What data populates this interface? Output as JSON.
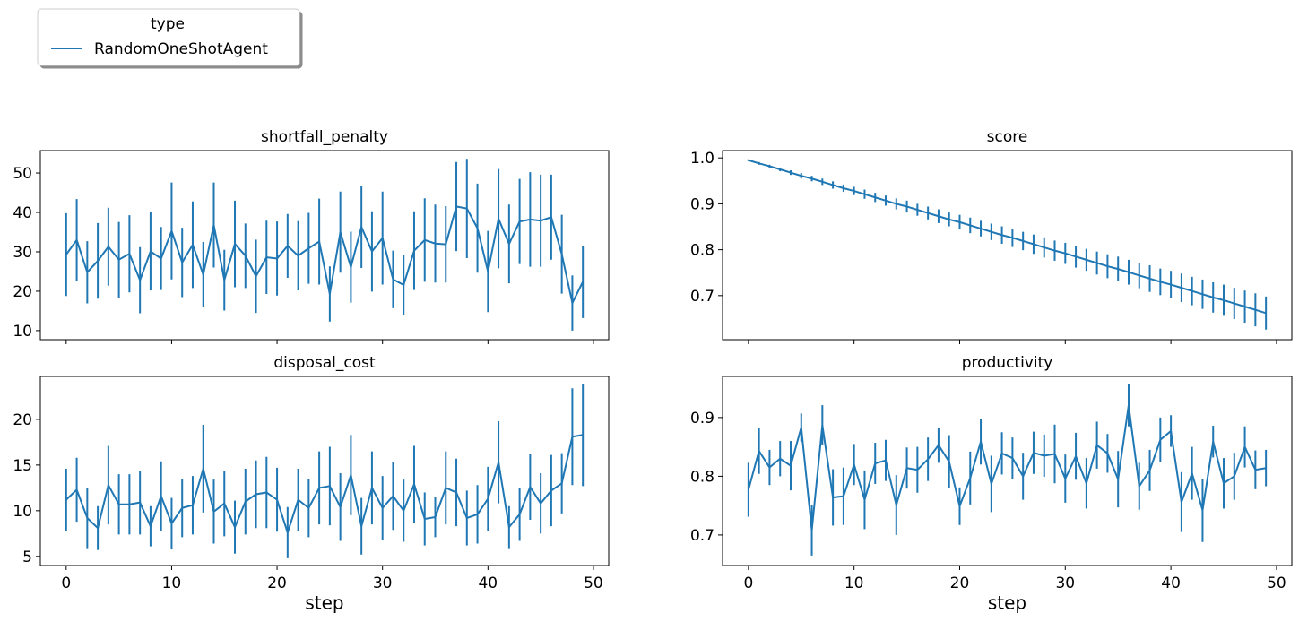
{
  "chart_data": [
    {
      "type": "line",
      "title": "shortfall_penalty",
      "legend_title": "type",
      "show_xticklabels": false,
      "x": [
        0,
        1,
        2,
        3,
        4,
        5,
        6,
        7,
        8,
        9,
        10,
        11,
        12,
        13,
        14,
        15,
        16,
        17,
        18,
        19,
        20,
        21,
        22,
        23,
        24,
        25,
        26,
        27,
        28,
        29,
        30,
        31,
        32,
        33,
        34,
        35,
        36,
        37,
        38,
        39,
        40,
        41,
        42,
        43,
        44,
        45,
        46,
        47,
        48,
        49
      ],
      "series": [
        {
          "name": "RandomOneShotAgent",
          "color": "#1f77b4",
          "values": [
            29.3,
            33,
            24.8,
            27.7,
            31.3,
            28,
            29.5,
            22.8,
            30.1,
            28.3,
            35.3,
            27.3,
            31.8,
            24.2,
            36.8,
            22.8,
            32,
            29,
            23.8,
            28.6,
            28.3,
            31.5,
            29,
            30.9,
            32.6,
            19.3,
            35,
            26.1,
            36.3,
            30.1,
            33.5,
            23,
            21.6,
            30.3,
            33,
            32.1,
            31.9,
            41.5,
            41,
            36,
            25,
            38.4,
            32,
            37.7,
            38.2,
            37.9,
            38.8,
            29.4,
            17,
            22.4
          ],
          "errors": [
            10.5,
            10.4,
            7.9,
            9.6,
            9.9,
            9.6,
            9.8,
            8.4,
            9.9,
            8,
            12.3,
            8.8,
            11,
            8.3,
            10.8,
            7.7,
            11,
            8.2,
            9.3,
            9.3,
            9.4,
            8.1,
            8.8,
            9,
            10.9,
            7,
            10.3,
            9,
            10.4,
            10.2,
            11.8,
            7.3,
            7.6,
            10,
            10.6,
            9.9,
            9.7,
            11.3,
            12.6,
            11.3,
            10.3,
            12.6,
            10,
            10.8,
            12,
            11.7,
            10.8,
            10,
            7,
            9.2
          ]
        }
      ],
      "xlim": [
        -2.45,
        51.45
      ],
      "xticks": [
        0,
        10,
        20,
        30,
        40,
        50
      ],
      "ylim": [
        7.7,
        55.7
      ],
      "yticks": [
        10,
        20,
        30,
        40,
        50
      ]
    },
    {
      "type": "line",
      "title": "score",
      "show_xticklabels": false,
      "x": [
        0,
        1,
        2,
        3,
        4,
        5,
        6,
        7,
        8,
        9,
        10,
        11,
        12,
        13,
        14,
        15,
        16,
        17,
        18,
        19,
        20,
        21,
        22,
        23,
        24,
        25,
        26,
        27,
        28,
        29,
        30,
        31,
        32,
        33,
        34,
        35,
        36,
        37,
        38,
        39,
        40,
        41,
        42,
        43,
        44,
        45,
        46,
        47,
        48,
        49
      ],
      "series": [
        {
          "name": "RandomOneShotAgent",
          "color": "#1f77b4",
          "values": [
            0.995,
            0.988,
            0.982,
            0.975,
            0.968,
            0.961,
            0.955,
            0.948,
            0.941,
            0.934,
            0.928,
            0.921,
            0.914,
            0.907,
            0.9,
            0.894,
            0.887,
            0.88,
            0.873,
            0.866,
            0.86,
            0.853,
            0.846,
            0.839,
            0.832,
            0.826,
            0.819,
            0.812,
            0.805,
            0.798,
            0.792,
            0.785,
            0.778,
            0.771,
            0.764,
            0.758,
            0.751,
            0.744,
            0.737,
            0.73,
            0.724,
            0.717,
            0.71,
            0.703,
            0.696,
            0.69,
            0.683,
            0.676,
            0.669,
            0.662
          ],
          "errors": [
            0.002,
            0.003,
            0.003,
            0.004,
            0.005,
            0.006,
            0.006,
            0.007,
            0.008,
            0.008,
            0.009,
            0.01,
            0.01,
            0.011,
            0.012,
            0.013,
            0.013,
            0.014,
            0.015,
            0.015,
            0.016,
            0.017,
            0.017,
            0.018,
            0.019,
            0.02,
            0.02,
            0.021,
            0.022,
            0.022,
            0.023,
            0.024,
            0.024,
            0.025,
            0.026,
            0.027,
            0.027,
            0.028,
            0.029,
            0.029,
            0.03,
            0.031,
            0.031,
            0.032,
            0.033,
            0.034,
            0.034,
            0.035,
            0.036,
            0.036
          ]
        }
      ],
      "xlim": [
        -2.45,
        51.45
      ],
      "xticks": [
        0,
        10,
        20,
        30,
        40,
        50
      ],
      "ylim": [
        0.604,
        1.016
      ],
      "yticks": [
        {
          "value": 0.7,
          "label": "0.7"
        },
        {
          "value": 0.8,
          "label": "0.8"
        },
        {
          "value": 0.9,
          "label": "0.9"
        },
        {
          "value": 1.0,
          "label": "1.0"
        }
      ]
    },
    {
      "type": "line",
      "title": "disposal_cost",
      "xlabel": "step",
      "show_xticklabels": true,
      "x": [
        0,
        1,
        2,
        3,
        4,
        5,
        6,
        7,
        8,
        9,
        10,
        11,
        12,
        13,
        14,
        15,
        16,
        17,
        18,
        19,
        20,
        21,
        22,
        23,
        24,
        25,
        26,
        27,
        28,
        29,
        30,
        31,
        32,
        33,
        34,
        35,
        36,
        37,
        38,
        39,
        40,
        41,
        42,
        43,
        44,
        45,
        46,
        47,
        48,
        49
      ],
      "series": [
        {
          "name": "RandomOneShotAgent",
          "color": "#1f77b4",
          "values": [
            11.2,
            12.3,
            9.2,
            8.1,
            12.8,
            10.7,
            10.7,
            10.9,
            8.3,
            11.6,
            8.6,
            10.3,
            10.6,
            14.6,
            9.9,
            10.8,
            8.2,
            11,
            11.8,
            12,
            11.2,
            7.6,
            11.2,
            10.3,
            12.5,
            12.7,
            10.4,
            13.9,
            8.3,
            12.5,
            10.3,
            11.6,
            10,
            12.9,
            9.1,
            9.3,
            12.5,
            12,
            9.2,
            9.6,
            11.3,
            15.3,
            8.2,
            9.6,
            12.6,
            10.8,
            12.2,
            13,
            18.1,
            18.3
          ],
          "errors": [
            3.4,
            3.5,
            3.3,
            2.4,
            4.3,
            3.3,
            3.3,
            3.5,
            2.2,
            3.8,
            2.8,
            3.2,
            3.2,
            4.8,
            3.5,
            3.6,
            2.9,
            3.6,
            3.7,
            3.9,
            3.5,
            2.8,
            3.4,
            3.2,
            4,
            4.3,
            3.7,
            4.4,
            3.1,
            4,
            3.5,
            3.7,
            3.4,
            4.2,
            2.9,
            2.2,
            4,
            3.7,
            3,
            3.2,
            3.5,
            4.5,
            2.3,
            2.9,
            3.6,
            3.3,
            3.9,
            3.3,
            5.3,
            5.6
          ]
        }
      ],
      "xlim": [
        -2.45,
        51.45
      ],
      "xticks": [
        0,
        10,
        20,
        30,
        40,
        50
      ],
      "ylim": [
        4.0,
        24.7
      ],
      "yticks": [
        5,
        10,
        15,
        20
      ]
    },
    {
      "type": "line",
      "title": "productivity",
      "xlabel": "step",
      "show_xticklabels": true,
      "x": [
        0,
        1,
        2,
        3,
        4,
        5,
        6,
        7,
        8,
        9,
        10,
        11,
        12,
        13,
        14,
        15,
        16,
        17,
        18,
        19,
        20,
        21,
        22,
        23,
        24,
        25,
        26,
        27,
        28,
        29,
        30,
        31,
        32,
        33,
        34,
        35,
        36,
        37,
        38,
        39,
        40,
        41,
        42,
        43,
        44,
        45,
        46,
        47,
        48,
        49
      ],
      "series": [
        {
          "name": "RandomOneShotAgent",
          "color": "#1f77b4",
          "values": [
            0.777,
            0.843,
            0.815,
            0.83,
            0.818,
            0.883,
            0.708,
            0.887,
            0.764,
            0.766,
            0.82,
            0.76,
            0.822,
            0.827,
            0.751,
            0.814,
            0.811,
            0.829,
            0.853,
            0.825,
            0.749,
            0.797,
            0.859,
            0.787,
            0.839,
            0.831,
            0.8,
            0.84,
            0.835,
            0.838,
            0.796,
            0.834,
            0.788,
            0.853,
            0.839,
            0.795,
            0.921,
            0.783,
            0.81,
            0.862,
            0.877,
            0.756,
            0.805,
            0.742,
            0.859,
            0.788,
            0.8,
            0.85,
            0.811,
            0.814
          ],
          "errors": [
            0.046,
            0.039,
            0.03,
            0.03,
            0.042,
            0.024,
            0.043,
            0.034,
            0.048,
            0.049,
            0.035,
            0.05,
            0.035,
            0.035,
            0.051,
            0.035,
            0.039,
            0.037,
            0.03,
            0.045,
            0.032,
            0.045,
            0.039,
            0.048,
            0.036,
            0.035,
            0.04,
            0.036,
            0.036,
            0.05,
            0.041,
            0.04,
            0.043,
            0.04,
            0.033,
            0.048,
            0.036,
            0.04,
            0.035,
            0.038,
            0.027,
            0.051,
            0.045,
            0.054,
            0.027,
            0.043,
            0.04,
            0.035,
            0.033,
            0.031
          ]
        }
      ],
      "xlim": [
        -2.45,
        51.45
      ],
      "xticks": [
        0,
        10,
        20,
        30,
        40,
        50
      ],
      "ylim": [
        0.648,
        0.97
      ],
      "yticks": [
        {
          "value": 0.7,
          "label": "0.7"
        },
        {
          "value": 0.8,
          "label": "0.8"
        },
        {
          "value": 0.9,
          "label": "0.9"
        }
      ]
    }
  ]
}
